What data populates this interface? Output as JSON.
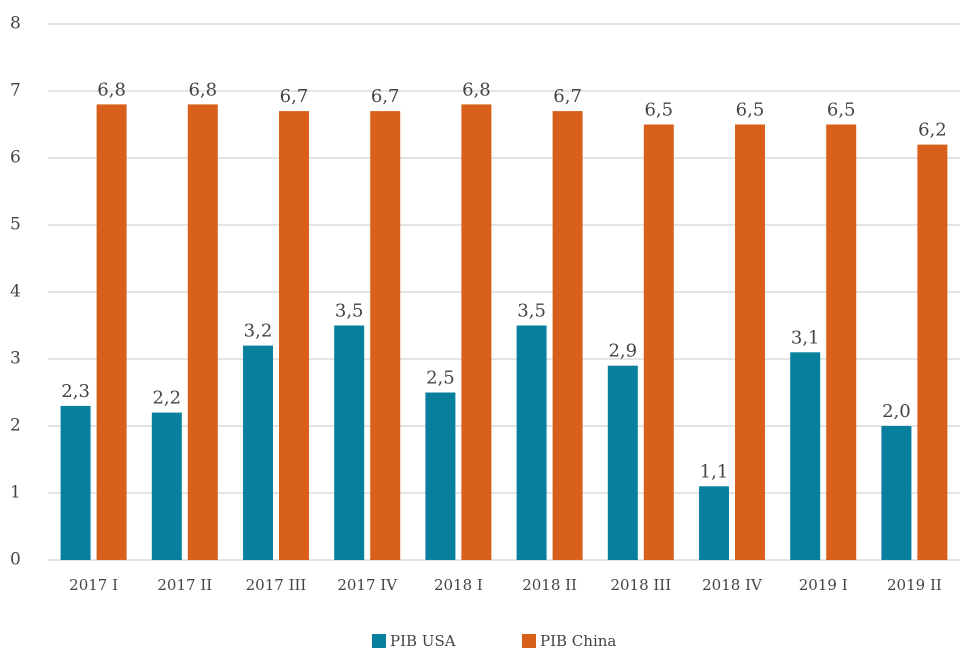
{
  "chart_data": {
    "type": "bar",
    "categories": [
      "2017 I",
      "2017 II",
      "2017 III",
      "2017 IV",
      "2018 I",
      "2018 II",
      "2018 III",
      "2018 IV",
      "2019 I",
      "2019 II"
    ],
    "series": [
      {
        "name": "PIB USA",
        "color": "#087f9c",
        "values": [
          2.3,
          2.2,
          3.2,
          3.5,
          2.5,
          3.5,
          2.9,
          1.1,
          3.1,
          2.0
        ],
        "value_labels": [
          "2,3",
          "2,2",
          "3,2",
          "3,5",
          "2,5",
          "3,5",
          "2,9",
          "1,1",
          "3,1",
          "2,0"
        ]
      },
      {
        "name": "PIB China",
        "color": "#d9601a",
        "values": [
          6.8,
          6.8,
          6.7,
          6.7,
          6.8,
          6.7,
          6.5,
          6.5,
          6.5,
          6.2
        ],
        "value_labels": [
          "6,8",
          "6,8",
          "6,7",
          "6,7",
          "6,8",
          "6,7",
          "6,5",
          "6,5",
          "6,5",
          "6,2"
        ]
      }
    ],
    "ylim": [
      0,
      8
    ],
    "yticks": [
      0,
      1,
      2,
      3,
      4,
      5,
      6,
      7,
      8
    ],
    "grid": true,
    "legend": "bottom"
  }
}
